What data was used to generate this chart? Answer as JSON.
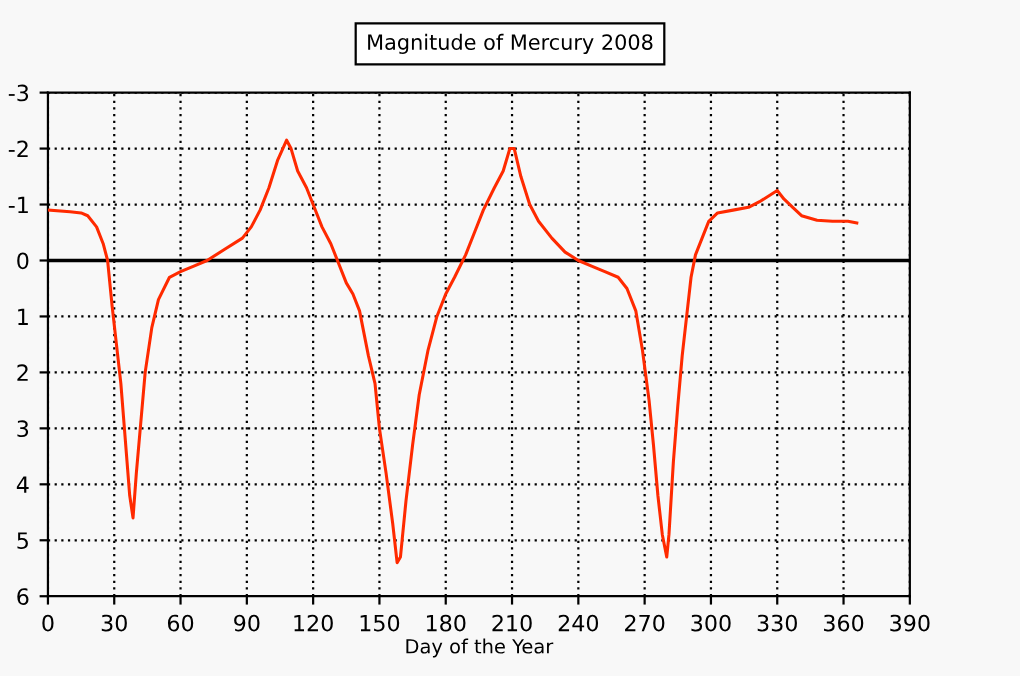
{
  "chart_data": {
    "type": "line",
    "title": "Magnitude of Mercury 2008",
    "xlabel": "Day of the Year",
    "x": [
      0,
      10,
      15,
      18,
      22,
      25,
      27,
      29,
      31,
      33,
      35,
      37,
      38.5,
      40,
      42,
      44,
      47,
      50,
      55,
      60,
      66,
      72,
      80,
      88,
      92,
      96,
      100,
      104,
      108,
      110,
      113,
      117,
      120,
      124,
      128,
      131,
      135,
      138,
      141,
      145,
      148,
      150,
      153,
      156,
      158,
      159.5,
      162,
      165,
      168,
      172,
      176,
      180,
      184,
      189,
      193,
      197,
      202,
      206,
      209,
      211,
      214,
      218,
      222,
      228,
      234,
      240,
      246,
      252,
      258,
      262,
      266,
      269,
      272,
      274,
      276,
      278,
      280,
      281,
      283,
      285,
      287,
      289,
      291,
      293,
      296,
      299,
      303,
      310,
      317,
      322,
      330,
      333,
      337,
      341,
      348,
      355,
      362,
      366
    ],
    "series": [
      {
        "color": "#ff2a00",
        "values": [
          -0.9,
          -0.87,
          -0.85,
          -0.8,
          -0.6,
          -0.3,
          0,
          0.8,
          1.5,
          2.2,
          3.2,
          4.2,
          4.6,
          3.8,
          2.9,
          2.0,
          1.2,
          0.7,
          0.3,
          0.2,
          0.1,
          0,
          -0.2,
          -0.4,
          -0.6,
          -0.9,
          -1.3,
          -1.8,
          -2.15,
          -2.0,
          -1.6,
          -1.3,
          -1.0,
          -0.6,
          -0.3,
          0,
          0.4,
          0.6,
          0.9,
          1.7,
          2.2,
          3.0,
          3.8,
          4.7,
          5.4,
          5.3,
          4.3,
          3.3,
          2.4,
          1.6,
          1.0,
          0.6,
          0.3,
          -0.1,
          -0.5,
          -0.9,
          -1.3,
          -1.6,
          -2.0,
          -2.0,
          -1.5,
          -1.0,
          -0.7,
          -0.4,
          -0.15,
          0,
          0.1,
          0.2,
          0.3,
          0.5,
          0.9,
          1.6,
          2.5,
          3.3,
          4.2,
          4.9,
          5.3,
          4.9,
          3.6,
          2.6,
          1.7,
          1.0,
          0.3,
          -0.1,
          -0.4,
          -0.7,
          -0.85,
          -0.9,
          -0.95,
          -1.05,
          -1.25,
          -1.1,
          -0.95,
          -0.8,
          -0.72,
          -0.7,
          -0.7,
          -0.67
        ]
      }
    ],
    "xlim": [
      0,
      390
    ],
    "xticks": [
      0,
      30,
      60,
      90,
      120,
      150,
      180,
      210,
      240,
      270,
      300,
      330,
      360,
      390
    ],
    "ylim": [
      6,
      -3
    ],
    "yticks": [
      -3,
      -2,
      -1,
      0,
      1,
      2,
      3,
      4,
      5,
      6
    ],
    "ref_lines": [
      {
        "axis": "y",
        "value": 0,
        "color": "#000000",
        "line_style": "solid"
      }
    ],
    "grid": true,
    "marker": "none",
    "line_style": "solid"
  }
}
